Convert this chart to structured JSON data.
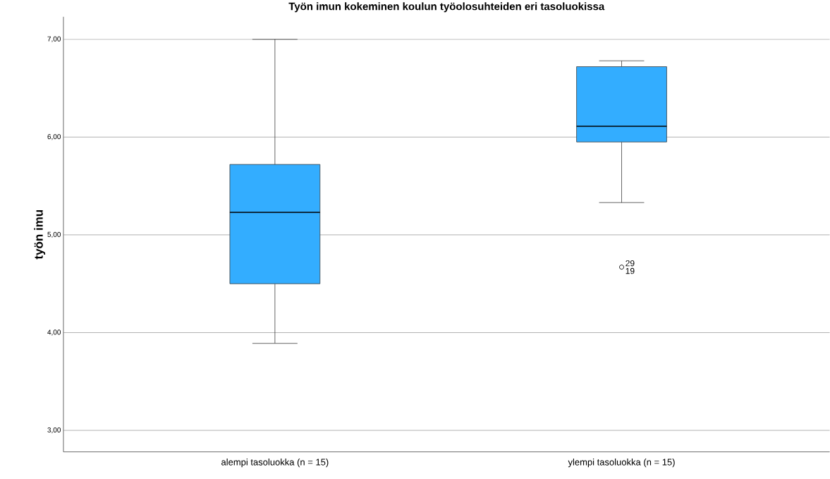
{
  "chart_data": {
    "type": "box",
    "title": "Työn imun kokeminen koulun työolosuhteiden eri tasoluokissa",
    "ylabel": "työn imu",
    "categories": [
      "alempi tasoluokka (n = 15)",
      "ylempi tasoluokka (n = 15)"
    ],
    "boxes": [
      {
        "low": 3.89,
        "q1": 4.5,
        "median": 5.23,
        "q3": 5.72,
        "high": 7.0
      },
      {
        "low": 5.33,
        "q1": 5.95,
        "median": 6.11,
        "q3": 6.72,
        "high": 6.78,
        "outliers": [
          4.67
        ]
      }
    ],
    "color": "#33adff",
    "ylim": [
      2.78,
      7.23
    ],
    "yticks": [
      {
        "value": 3,
        "label": "3,00"
      },
      {
        "value": 4,
        "label": "4,00"
      },
      {
        "value": 5,
        "label": "5,00"
      },
      {
        "value": 6,
        "label": "6,00"
      },
      {
        "value": 7,
        "label": "7,00"
      }
    ],
    "grid": "y",
    "annotations": [
      "29",
      "19"
    ]
  }
}
